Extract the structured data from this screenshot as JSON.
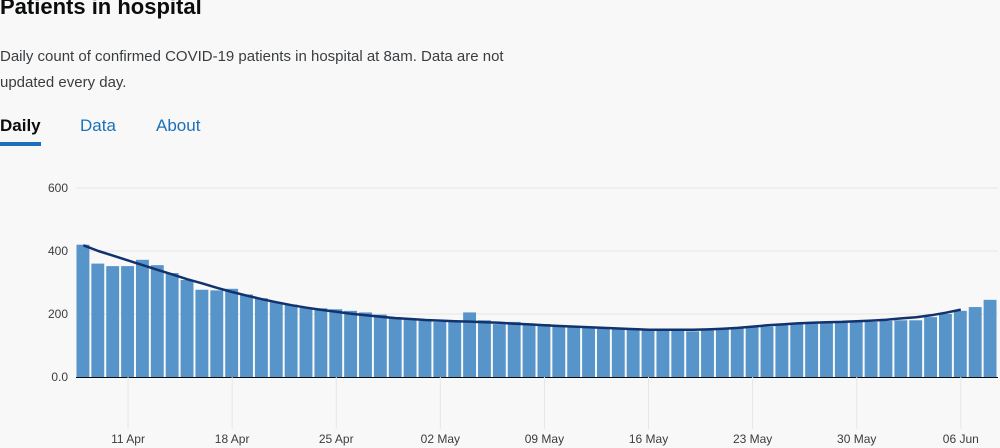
{
  "page": {
    "title": "Patients in hospital",
    "description": "Daily count of confirmed COVID-19 patients in hospital at 8am. Data are not updated every day."
  },
  "tabs": [
    {
      "label": "Daily",
      "active": true
    },
    {
      "label": "Data",
      "active": false
    },
    {
      "label": "About",
      "active": false
    }
  ],
  "colors": {
    "bar": "#5694ca",
    "line": "#12326e",
    "grid": "#e6e6e6",
    "axis": "#0b0c0c"
  },
  "chart_data": {
    "type": "bar",
    "x": [
      "2020-04-08",
      "2020-04-09",
      "2020-04-10",
      "2020-04-11",
      "2020-04-12",
      "2020-04-13",
      "2020-04-14",
      "2020-04-15",
      "2020-04-16",
      "2020-04-17",
      "2020-04-18",
      "2020-04-19",
      "2020-04-20",
      "2020-04-21",
      "2020-04-22",
      "2020-04-23",
      "2020-04-24",
      "2020-04-25",
      "2020-04-26",
      "2020-04-27",
      "2020-04-28",
      "2020-04-29",
      "2020-04-30",
      "2020-05-01",
      "2020-05-02",
      "2020-05-03",
      "2020-05-04",
      "2020-05-05",
      "2020-05-06",
      "2020-05-07",
      "2020-05-08",
      "2020-05-09",
      "2020-05-10",
      "2020-05-11",
      "2020-05-12",
      "2020-05-13",
      "2020-05-14",
      "2020-05-15",
      "2020-05-16",
      "2020-05-17",
      "2020-05-18",
      "2020-05-19",
      "2020-05-20",
      "2020-05-21",
      "2020-05-22",
      "2020-05-23",
      "2020-05-24",
      "2020-05-25",
      "2020-05-26",
      "2020-05-27",
      "2020-05-28",
      "2020-05-29",
      "2020-05-30",
      "2020-05-31",
      "2020-06-01",
      "2020-06-02",
      "2020-06-03",
      "2020-06-04",
      "2020-06-05",
      "2020-06-06",
      "2020-06-07",
      "2020-06-08"
    ],
    "series": [
      {
        "type": "bar",
        "values": [
          420,
          360,
          352,
          352,
          372,
          355,
          330,
          308,
          277,
          275,
          280,
          262,
          250,
          238,
          230,
          220,
          218,
          215,
          210,
          205,
          198,
          190,
          185,
          178,
          175,
          178,
          205,
          180,
          168,
          175,
          170,
          168,
          165,
          162,
          158,
          155,
          155,
          152,
          150,
          150,
          148,
          145,
          150,
          155,
          155,
          158,
          160,
          165,
          172,
          172,
          172,
          175,
          175,
          175,
          178,
          180,
          180,
          190,
          200,
          210,
          222,
          245
        ]
      },
      {
        "type": "line",
        "values": [
          418,
          400,
          385,
          370,
          355,
          340,
          325,
          310,
          297,
          283,
          270,
          258,
          247,
          237,
          228,
          220,
          213,
          207,
          201,
          196,
          191,
          187,
          184,
          181,
          179,
          177,
          176,
          174,
          172,
          169,
          167,
          164,
          162,
          160,
          158,
          156,
          154,
          152,
          150,
          150,
          150,
          150,
          151,
          153,
          156,
          160,
          164,
          167,
          170,
          172,
          174,
          175,
          177,
          179,
          182,
          186,
          190,
          196,
          204,
          214,
          null,
          null
        ]
      }
    ],
    "ylim": [
      0,
      600
    ],
    "yticks": [
      0,
      200,
      400,
      600
    ],
    "ytick_labels": [
      "0.0",
      "200",
      "400",
      "600"
    ],
    "xticks": [
      "11 Apr",
      "18 Apr",
      "25 Apr",
      "02 May",
      "09 May",
      "16 May",
      "23 May",
      "30 May",
      "06 Jun"
    ],
    "grid": true
  }
}
